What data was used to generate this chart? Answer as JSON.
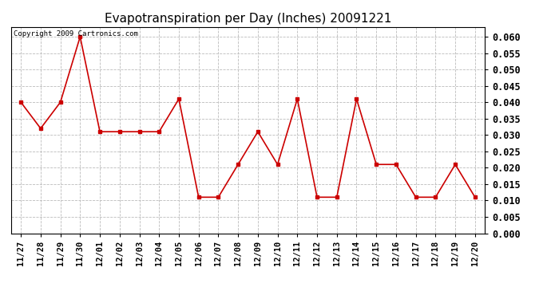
{
  "title": "Evapotranspiration per Day (Inches) 20091221",
  "copyright_text": "Copyright 2009 Cartronics.com",
  "x_labels": [
    "11/27",
    "11/28",
    "11/29",
    "11/30",
    "12/01",
    "12/02",
    "12/03",
    "12/04",
    "12/05",
    "12/06",
    "12/07",
    "12/08",
    "12/09",
    "12/10",
    "12/11",
    "12/12",
    "12/13",
    "12/14",
    "12/15",
    "12/16",
    "12/17",
    "12/18",
    "12/19",
    "12/20"
  ],
  "y_values": [
    0.04,
    0.032,
    0.04,
    0.06,
    0.031,
    0.031,
    0.031,
    0.031,
    0.041,
    0.011,
    0.011,
    0.021,
    0.031,
    0.021,
    0.041,
    0.011,
    0.011,
    0.041,
    0.021,
    0.021,
    0.011,
    0.011,
    0.021,
    0.011
  ],
  "line_color": "#cc0000",
  "marker": "s",
  "marker_size": 3,
  "ylim": [
    0.0,
    0.063
  ],
  "yticks": [
    0.0,
    0.005,
    0.01,
    0.015,
    0.02,
    0.025,
    0.03,
    0.035,
    0.04,
    0.045,
    0.05,
    0.055,
    0.06
  ],
  "background_color": "#ffffff",
  "plot_bg_color": "#ffffff",
  "grid_color": "#bbbbbb",
  "title_fontsize": 11,
  "copyright_fontsize": 6.5,
  "tick_fontsize": 7.5,
  "ytick_fontsize": 8.5
}
